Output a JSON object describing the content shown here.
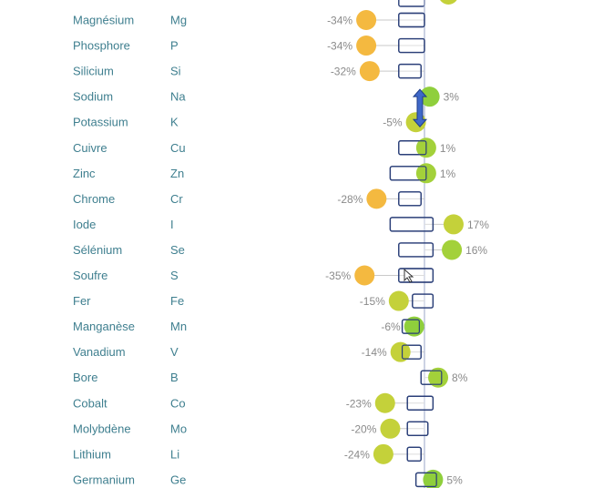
{
  "chart_data": {
    "type": "dot-range",
    "xlim": [
      -40,
      20
    ],
    "elements": [
      {
        "name": "Magnésium",
        "symbol": "Mg",
        "pct_label": "-34%",
        "value": -34,
        "box": [
          -15,
          0
        ],
        "color": "#f4b940"
      },
      {
        "name": "Phosphore",
        "symbol": "P",
        "pct_label": "-34%",
        "value": -34,
        "box": [
          -15,
          0
        ],
        "color": "#f4b940"
      },
      {
        "name": "Silicium",
        "symbol": "Si",
        "pct_label": "-32%",
        "value": -32,
        "box": [
          -15,
          -2
        ],
        "color": "#f4b940"
      },
      {
        "name": "Sodium",
        "symbol": "Na",
        "pct_label": "3%",
        "value": 3,
        "box": null,
        "color": "#8fcf3c"
      },
      {
        "name": "Potassium",
        "symbol": "K",
        "pct_label": "-5%",
        "value": -5,
        "box": null,
        "color": "#c4d13a"
      },
      {
        "name": "Cuivre",
        "symbol": "Cu",
        "pct_label": "1%",
        "value": 1,
        "box": [
          -15,
          1
        ],
        "color": "#a3d13a"
      },
      {
        "name": "Zinc",
        "symbol": "Zn",
        "pct_label": "1%",
        "value": 1,
        "box": [
          -20,
          1
        ],
        "color": "#a3d13a"
      },
      {
        "name": "Chrome",
        "symbol": "Cr",
        "pct_label": "-28%",
        "value": -28,
        "box": [
          -15,
          -2
        ],
        "color": "#f4b940"
      },
      {
        "name": "Iode",
        "symbol": "I",
        "pct_label": "17%",
        "value": 17,
        "box": [
          -20,
          5
        ],
        "color": "#c4d13a"
      },
      {
        "name": "Sélénium",
        "symbol": "Se",
        "pct_label": "16%",
        "value": 16,
        "box": [
          -15,
          5
        ],
        "color": "#a3d13a"
      },
      {
        "name": "Soufre",
        "symbol": "S",
        "pct_label": "-35%",
        "value": -35,
        "box": [
          -15,
          5
        ],
        "color": "#f4b940"
      },
      {
        "name": "Fer",
        "symbol": "Fe",
        "pct_label": "-15%",
        "value": -15,
        "box": [
          -7,
          5
        ],
        "color": "#c4d13a"
      },
      {
        "name": "Manganèse",
        "symbol": "Mn",
        "pct_label": "-6%",
        "value": -6,
        "box": [
          -13,
          -3
        ],
        "color": "#8fcf3c"
      },
      {
        "name": "Vanadium",
        "symbol": "V",
        "pct_label": "-14%",
        "value": -14,
        "box": [
          -13,
          -2
        ],
        "color": "#c4d13a"
      },
      {
        "name": "Bore",
        "symbol": "B",
        "pct_label": "8%",
        "value": 8,
        "box": [
          -2,
          10
        ],
        "color": "#a3d13a"
      },
      {
        "name": "Cobalt",
        "symbol": "Co",
        "pct_label": "-23%",
        "value": -23,
        "box": [
          -10,
          5
        ],
        "color": "#c4d13a"
      },
      {
        "name": "Molybdène",
        "symbol": "Mo",
        "pct_label": "-20%",
        "value": -20,
        "box": [
          -10,
          2
        ],
        "color": "#c4d13a"
      },
      {
        "name": "Lithium",
        "symbol": "Li",
        "pct_label": "-24%",
        "value": -24,
        "box": [
          -10,
          -2
        ],
        "color": "#c4d13a"
      },
      {
        "name": "Germanium",
        "symbol": "Ge",
        "pct_label": "5%",
        "value": 5,
        "box": [
          -5,
          7
        ],
        "color": "#8fcf3c"
      }
    ],
    "colors": {
      "box_stroke": "#2a3f78",
      "zero_line": "#9aa6c8",
      "arrow": "#3f68c8",
      "arrow_stroke": "#1f3d8a"
    }
  }
}
